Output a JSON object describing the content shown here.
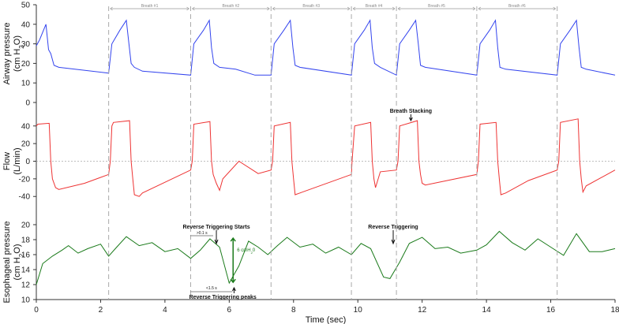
{
  "chart_data": [
    {
      "type": "line",
      "panel": "airway",
      "ylabel_line1": "Airway pressure",
      "ylabel_line2": "(cm H",
      "ylabel_sub": "2",
      "ylabel_end": "O)",
      "ylim": [
        0,
        50
      ],
      "yticks": [
        "0",
        "10",
        "20",
        "30",
        "40",
        "50"
      ],
      "color": "#3344ee",
      "series": [
        {
          "x": [
            0,
            0.1,
            0.3,
            0.38,
            0.45,
            0.55,
            0.7,
            2.25,
            2.35,
            2.6,
            2.8,
            2.88,
            2.95,
            3.05,
            3.3,
            4.8,
            4.9,
            5.2,
            5.38,
            5.45,
            5.52,
            5.7,
            6.2,
            6.8,
            7.3,
            7.4,
            7.7,
            7.9,
            7.98,
            8.05,
            8.2,
            9.8,
            9.9,
            10.2,
            10.38,
            10.45,
            10.52,
            10.7,
            11.2,
            11.3,
            11.6,
            11.8,
            11.88,
            11.95,
            12.1,
            13.7,
            13.8,
            14.1,
            14.28,
            14.35,
            14.42,
            14.6,
            16.2,
            16.3,
            16.6,
            16.8,
            16.88,
            16.95,
            17.1,
            18
          ],
          "y": [
            29,
            32,
            40,
            27,
            25,
            19,
            18,
            15,
            30,
            37,
            42,
            30,
            20,
            18,
            16,
            14,
            30,
            37,
            42,
            28,
            20,
            18,
            17,
            14,
            14,
            30,
            37,
            42,
            28,
            19,
            18,
            14,
            30,
            37,
            42,
            28,
            20,
            18,
            14,
            30,
            37,
            42,
            30,
            19,
            18,
            14,
            30,
            37,
            42,
            28,
            18,
            17,
            14,
            30,
            37,
            42,
            28,
            18,
            17,
            14
          ]
        }
      ]
    },
    {
      "type": "line",
      "panel": "flow",
      "ylabel_line1": "Flow",
      "ylabel_line2": "(L/min)",
      "ylim": [
        -55,
        55
      ],
      "yticks": [
        "-40",
        "-20",
        "0",
        "20",
        "40"
      ],
      "color": "#ee3333",
      "annotation": "Breath Stacking",
      "series": [
        {
          "x": [
            0,
            0.05,
            0.4,
            0.45,
            0.5,
            0.6,
            0.7,
            1.5,
            2.25,
            2.3,
            2.35,
            2.4,
            2.9,
            2.95,
            3.0,
            3.05,
            3.2,
            3.3,
            4.8,
            4.85,
            4.9,
            5.4,
            5.45,
            5.5,
            5.6,
            5.7,
            5.8,
            6.3,
            6.9,
            7.3,
            7.35,
            7.4,
            7.9,
            7.95,
            8.0,
            8.05,
            8.2,
            9.8,
            9.82,
            9.9,
            10.4,
            10.45,
            10.5,
            10.55,
            10.7,
            11.2,
            11.25,
            11.3,
            11.85,
            11.9,
            11.95,
            12.0,
            12.1,
            13.7,
            13.75,
            13.8,
            14.3,
            14.35,
            14.4,
            14.45,
            14.6,
            15.3,
            16.2,
            16.25,
            16.3,
            16.85,
            16.9,
            16.95,
            17.0,
            17.1,
            18
          ],
          "y": [
            40,
            42,
            43,
            0,
            -20,
            -30,
            -32,
            -25,
            -15,
            0,
            40,
            44,
            46,
            0,
            -20,
            -38,
            -40,
            -36,
            -10,
            0,
            42,
            45,
            0,
            -15,
            -25,
            -33,
            -20,
            0,
            -14,
            -10,
            0,
            40,
            44,
            0,
            -20,
            -38,
            -36,
            -15,
            0,
            40,
            44,
            0,
            -20,
            -30,
            -12,
            -10,
            0,
            40,
            46,
            0,
            -15,
            -25,
            -27,
            -15,
            0,
            42,
            44,
            0,
            -20,
            -38,
            -36,
            -22,
            -10,
            0,
            44,
            48,
            0,
            -20,
            -35,
            -28,
            -10
          ]
        }
      ]
    },
    {
      "type": "line",
      "panel": "esophageal",
      "ylabel_line1": "Esophageal pressure",
      "ylabel_line2": "(cm H",
      "ylabel_sub": "2",
      "ylabel_end": "O)",
      "ylim": [
        10,
        20
      ],
      "yticks": [
        "10",
        "12",
        "14",
        "16",
        "18",
        "20"
      ],
      "color": "#1a7a1a",
      "annotations": [
        "Reverse Triggering Starts",
        "Reverse Triggering",
        "Reverse Triggering peaks"
      ],
      "series": [
        {
          "x": [
            0,
            0.2,
            0.5,
            0.8,
            1.0,
            1.3,
            1.6,
            2.0,
            2.25,
            2.5,
            2.8,
            3.2,
            3.6,
            4.0,
            4.4,
            4.8,
            5.1,
            5.4,
            5.7,
            6.0,
            6.3,
            6.6,
            6.9,
            7.2,
            7.5,
            7.8,
            8.2,
            8.6,
            9.0,
            9.4,
            9.8,
            10.1,
            10.4,
            10.8,
            11.0,
            11.3,
            11.6,
            12.0,
            12.4,
            12.8,
            13.2,
            13.7,
            14.0,
            14.4,
            14.8,
            15.2,
            15.6,
            16.0,
            16.4,
            16.8,
            17.2,
            17.6,
            18
          ],
          "y": [
            12.0,
            14.8,
            15.8,
            16.6,
            17.2,
            16.2,
            16.8,
            17.4,
            15.8,
            17.0,
            18.4,
            17.2,
            17.6,
            16.4,
            16.8,
            15.5,
            16.6,
            18.1,
            17.0,
            12.2,
            14.5,
            17.8,
            17.0,
            16.0,
            17.2,
            18.3,
            17.0,
            17.4,
            16.2,
            17.0,
            16.0,
            17.5,
            16.8,
            13.0,
            12.8,
            15.0,
            17.5,
            18.3,
            16.8,
            17.0,
            16.2,
            16.6,
            17.3,
            19.1,
            17.6,
            16.6,
            18.1,
            17.0,
            15.9,
            18.8,
            16.4,
            16.4,
            16.8
          ]
        }
      ]
    }
  ],
  "xlabel": "Time (sec)",
  "xticks": [
    "0",
    "2",
    "4",
    "6",
    "8",
    "10",
    "12",
    "14",
    "16",
    "18"
  ],
  "breath_labels": [
    "Breath #1",
    "Breath #2",
    "Breath #3",
    "Breath #4",
    "Breath #5",
    "Breath #6"
  ],
  "breath_bounds": [
    2.25,
    4.8,
    7.3,
    9.8,
    11.2,
    13.7,
    16.2
  ],
  "notes": {
    "delay": ">0.1 s",
    "duration": "<1.5 s",
    "delta_value": "6 cmH",
    "delta_sub": "2",
    "delta_end": "0"
  }
}
